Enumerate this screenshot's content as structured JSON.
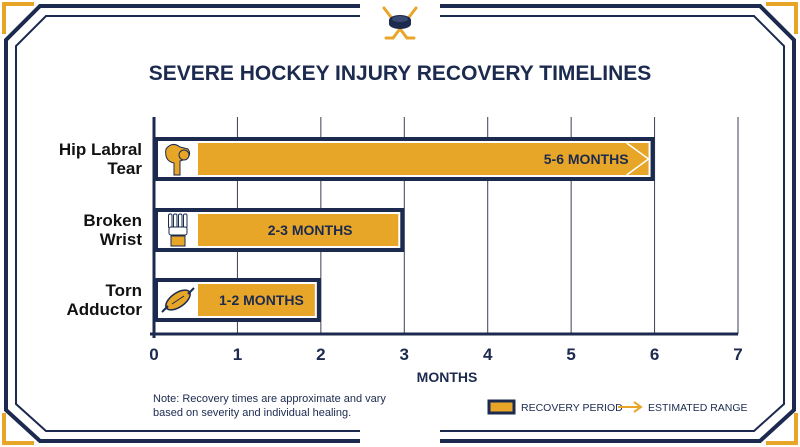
{
  "colors": {
    "navy": "#1b2a4e",
    "gold": "#e8a628",
    "white": "#ffffff",
    "grid": "#3a3f55"
  },
  "chart_data": {
    "type": "bar",
    "orientation": "horizontal",
    "title": "SEVERE HOCKEY INJURY RECOVERY TIMELINES",
    "xlabel": "MONTHS",
    "ylabel": "",
    "xlim": [
      0,
      7
    ],
    "ticks": [
      "0",
      "1",
      "2",
      "3",
      "4",
      "5",
      "6",
      "7"
    ],
    "grid": true,
    "categories": [
      "Hip Labral Tear",
      "Broken Wrist",
      "Torn Adductor"
    ],
    "values": [
      6,
      3,
      2
    ],
    "bar_labels": [
      "5-6 MONTHS",
      "2-3 MONTHS",
      "1-2 MONTHS"
    ],
    "icons": [
      "hip-joint-icon",
      "wrist-bone-icon",
      "muscle-icon"
    ],
    "legend": {
      "placement": "bottom-right",
      "items": [
        "RECOVERY PERIOD",
        "ESTIMATED RANGE"
      ]
    },
    "note": [
      "Note: Recovery times are approximate and vary",
      "based on severity and individual healing."
    ]
  }
}
